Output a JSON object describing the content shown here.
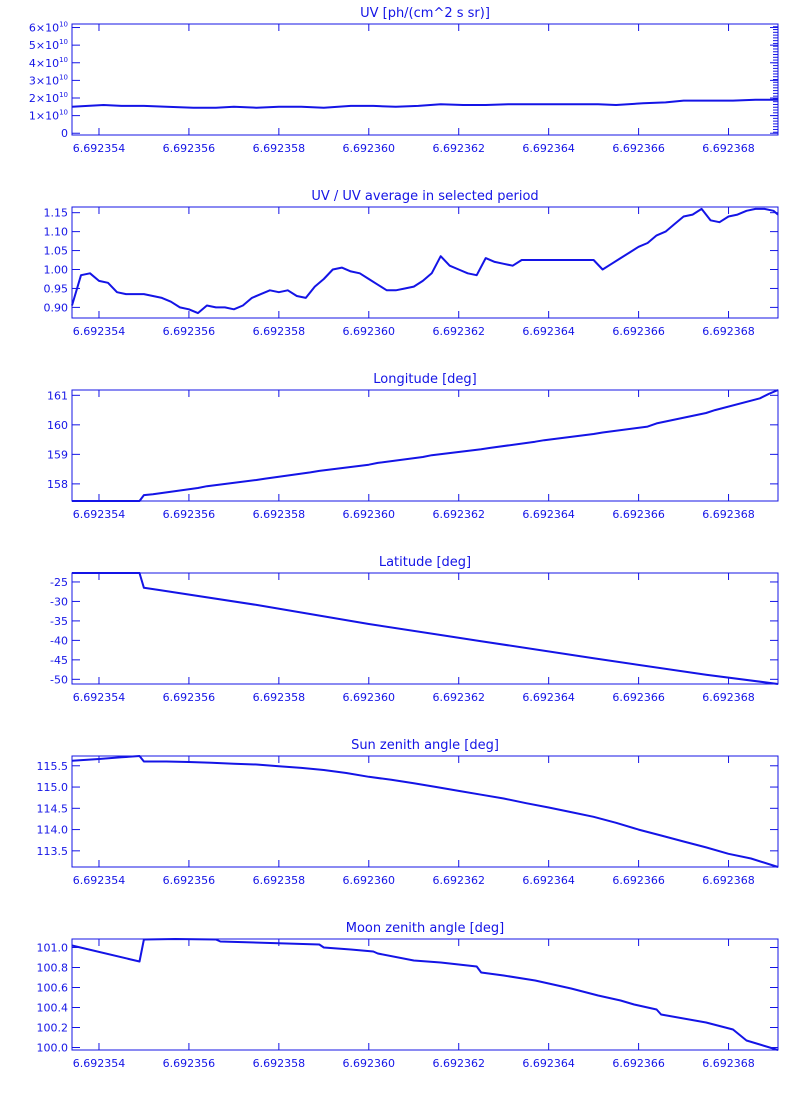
{
  "colors": {
    "plot": "#1414e6",
    "background": "#ffffff"
  },
  "chart_data": [
    {
      "type": "line",
      "title": "UV [ph/(cm^2 s sr)]",
      "xlim": [
        6.6923534,
        6.6923691
      ],
      "ylim": [
        -1000000000.0,
        62000000000.0
      ],
      "x_ticks": [
        6.692354,
        6.692356,
        6.692358,
        6.69236,
        6.692362,
        6.692364,
        6.692366,
        6.692368
      ],
      "x_tick_labels": [
        "6.692354",
        "6.692356",
        "6.692358",
        "6.692360",
        "6.692362",
        "6.692364",
        "6.692366",
        "6.692368"
      ],
      "y_ticks": [
        0,
        10000000000.0,
        20000000000.0,
        30000000000.0,
        40000000000.0,
        50000000000.0,
        60000000000.0
      ],
      "y_tick_labels": [
        {
          "base": "0",
          "exp": ""
        },
        {
          "base": "1×10",
          "exp": "10"
        },
        {
          "base": "2×10",
          "exp": "10"
        },
        {
          "base": "3×10",
          "exp": "10"
        },
        {
          "base": "4×10",
          "exp": "10"
        },
        {
          "base": "5×10",
          "exp": "10"
        },
        {
          "base": "6×10",
          "exp": "10"
        }
      ],
      "minor_right_ticks": true,
      "x": [
        6.6923534,
        6.6923541,
        6.6923545,
        6.692355,
        6.6923555,
        6.6923561,
        6.6923566,
        6.692357,
        6.6923575,
        6.692358,
        6.6923585,
        6.692359,
        6.6923596,
        6.6923601,
        6.6923606,
        6.6923611,
        6.6923616,
        6.6923621,
        6.6923626,
        6.6923631,
        6.6923637,
        6.6923642,
        6.6923647,
        6.6923651,
        6.6923655,
        6.6923661,
        6.6923666,
        6.692367,
        6.6923676,
        6.6923681,
        6.6923686,
        6.6923691
      ],
      "y": [
        15000000000.0,
        16000000000.0,
        15500000000.0,
        15500000000.0,
        15000000000.0,
        14500000000.0,
        14500000000.0,
        15000000000.0,
        14500000000.0,
        15000000000.0,
        15000000000.0,
        14500000000.0,
        15500000000.0,
        15500000000.0,
        15000000000.0,
        15500000000.0,
        16500000000.0,
        16000000000.0,
        16000000000.0,
        16500000000.0,
        16500000000.0,
        16500000000.0,
        16500000000.0,
        16500000000.0,
        16000000000.0,
        17000000000.0,
        17500000000.0,
        18500000000.0,
        18500000000.0,
        18500000000.0,
        19000000000.0,
        19000000000.0
      ]
    },
    {
      "type": "line",
      "title": "UV / UV average in selected period",
      "xlim": [
        6.6923534,
        6.6923691
      ],
      "ylim": [
        0.872,
        1.165
      ],
      "x_ticks": [
        6.692354,
        6.692356,
        6.692358,
        6.69236,
        6.692362,
        6.692364,
        6.692366,
        6.692368
      ],
      "x_tick_labels": [
        "6.692354",
        "6.692356",
        "6.692358",
        "6.692360",
        "6.692362",
        "6.692364",
        "6.692366",
        "6.692368"
      ],
      "y_ticks": [
        0.9,
        0.95,
        1.0,
        1.05,
        1.1,
        1.15
      ],
      "y_tick_labels": [
        "0.90",
        "0.95",
        "1.00",
        "1.05",
        "1.10",
        "1.15"
      ],
      "x": [
        6.6923534,
        6.6923536,
        6.6923538,
        6.692354,
        6.6923542,
        6.6923544,
        6.6923546,
        6.6923548,
        6.692355,
        6.6923552,
        6.6923554,
        6.6923556,
        6.6923558,
        6.692356,
        6.6923562,
        6.6923564,
        6.6923566,
        6.6923568,
        6.692357,
        6.6923572,
        6.6923574,
        6.6923576,
        6.6923578,
        6.692358,
        6.6923582,
        6.6923584,
        6.6923586,
        6.6923588,
        6.692359,
        6.6923592,
        6.6923594,
        6.6923596,
        6.6923598,
        6.69236,
        6.6923602,
        6.6923604,
        6.6923606,
        6.6923608,
        6.692361,
        6.6923612,
        6.6923614,
        6.6923616,
        6.6923618,
        6.692362,
        6.6923622,
        6.6923624,
        6.6923626,
        6.6923628,
        6.692363,
        6.6923632,
        6.6923634,
        6.6923636,
        6.6923638,
        6.692364,
        6.6923642,
        6.6923644,
        6.6923646,
        6.6923648,
        6.692365,
        6.6923652,
        6.6923654,
        6.6923656,
        6.6923658,
        6.692366,
        6.6923662,
        6.6923664,
        6.6923666,
        6.6923668,
        6.692367,
        6.6923672,
        6.6923674,
        6.6923676,
        6.6923678,
        6.692368,
        6.6923682,
        6.6923684,
        6.6923686,
        6.6923688,
        6.692369,
        6.6923691
      ],
      "y": [
        0.905,
        0.985,
        0.99,
        0.97,
        0.965,
        0.94,
        0.935,
        0.935,
        0.935,
        0.93,
        0.925,
        0.915,
        0.9,
        0.895,
        0.885,
        0.905,
        0.9,
        0.9,
        0.895,
        0.905,
        0.925,
        0.935,
        0.945,
        0.94,
        0.945,
        0.93,
        0.925,
        0.955,
        0.975,
        1.0,
        1.005,
        0.995,
        0.99,
        0.975,
        0.96,
        0.945,
        0.945,
        0.95,
        0.955,
        0.97,
        0.99,
        1.035,
        1.01,
        1.0,
        0.99,
        0.985,
        1.03,
        1.02,
        1.015,
        1.01,
        1.025,
        1.025,
        1.025,
        1.025,
        1.025,
        1.025,
        1.025,
        1.025,
        1.025,
        1.0,
        1.015,
        1.03,
        1.045,
        1.06,
        1.07,
        1.09,
        1.1,
        1.12,
        1.14,
        1.145,
        1.16,
        1.13,
        1.125,
        1.14,
        1.145,
        1.155,
        1.16,
        1.16,
        1.155,
        1.145
      ]
    },
    {
      "type": "line",
      "title": "Longitude [deg]",
      "xlim": [
        6.6923534,
        6.6923691
      ],
      "ylim": [
        157.42,
        161.18
      ],
      "x_ticks": [
        6.692354,
        6.692356,
        6.692358,
        6.69236,
        6.692362,
        6.692364,
        6.692366,
        6.692368
      ],
      "x_tick_labels": [
        "6.692354",
        "6.692356",
        "6.692358",
        "6.692360",
        "6.692362",
        "6.692364",
        "6.692366",
        "6.692368"
      ],
      "y_ticks": [
        158,
        159,
        160,
        161
      ],
      "y_tick_labels": [
        "158",
        "159",
        "160",
        "161"
      ],
      "x": [
        6.6923534,
        6.6923549,
        6.692355,
        6.6923552,
        6.6923562,
        6.6923564,
        6.6923575,
        6.6923577,
        6.6923587,
        6.6923589,
        6.69236,
        6.6923602,
        6.6923612,
        6.6923614,
        6.6923625,
        6.6923627,
        6.6923637,
        6.6923639,
        6.692365,
        6.6923652,
        6.6923662,
        6.6923664,
        6.6923675,
        6.6923677,
        6.6923687,
        6.6923689,
        6.6923691
      ],
      "y": [
        157.42,
        157.42,
        157.62,
        157.65,
        157.86,
        157.92,
        158.13,
        158.18,
        158.39,
        158.44,
        158.65,
        158.71,
        158.91,
        158.97,
        159.17,
        159.22,
        159.43,
        159.48,
        159.69,
        159.74,
        159.94,
        160.05,
        160.4,
        160.5,
        160.9,
        161.05,
        161.18
      ]
    },
    {
      "type": "line",
      "title": "Latitude [deg]",
      "xlim": [
        6.6923534,
        6.6923691
      ],
      "ylim": [
        -51.2,
        -22.7
      ],
      "x_ticks": [
        6.692354,
        6.692356,
        6.692358,
        6.69236,
        6.692362,
        6.692364,
        6.692366,
        6.692368
      ],
      "x_tick_labels": [
        "6.692354",
        "6.692356",
        "6.692358",
        "6.692360",
        "6.692362",
        "6.692364",
        "6.692366",
        "6.692368"
      ],
      "y_ticks": [
        -50,
        -45,
        -40,
        -35,
        -30,
        -25
      ],
      "y_tick_labels": [
        "-50",
        "-45",
        "-40",
        "-35",
        "-30",
        "-25"
      ],
      "x": [
        6.6923534,
        6.6923549,
        6.692355,
        6.6923553,
        6.6923575,
        6.69236,
        6.6923625,
        6.692365,
        6.6923675,
        6.6923691
      ],
      "y": [
        -22.7,
        -22.7,
        -26.5,
        -27,
        -30.9,
        -35.8,
        -40.2,
        -44.6,
        -48.8,
        -51.2
      ]
    },
    {
      "type": "line",
      "title": "Sun zenith angle [deg]",
      "xlim": [
        6.6923534,
        6.6923691
      ],
      "ylim": [
        113.12,
        115.73
      ],
      "x_ticks": [
        6.692354,
        6.692356,
        6.692358,
        6.69236,
        6.692362,
        6.692364,
        6.692366,
        6.692368
      ],
      "x_tick_labels": [
        "6.692354",
        "6.692356",
        "6.692358",
        "6.692360",
        "6.692362",
        "6.692364",
        "6.692366",
        "6.692368"
      ],
      "y_ticks": [
        113.5,
        114.0,
        114.5,
        115.0,
        115.5
      ],
      "y_tick_labels": [
        "113.5",
        "114.0",
        "114.5",
        "115.0",
        "115.5"
      ],
      "x": [
        6.6923534,
        6.692354,
        6.6923545,
        6.6923549,
        6.692355,
        6.6923555,
        6.692356,
        6.6923565,
        6.692357,
        6.6923575,
        6.692358,
        6.6923585,
        6.692359,
        6.6923595,
        6.69236,
        6.6923605,
        6.692361,
        6.6923615,
        6.692362,
        6.6923625,
        6.692363,
        6.6923635,
        6.692364,
        6.6923645,
        6.692365,
        6.6923655,
        6.692366,
        6.6923665,
        6.692367,
        6.6923675,
        6.692368,
        6.6923685,
        6.6923691
      ],
      "y": [
        115.62,
        115.66,
        115.7,
        115.73,
        115.6,
        115.6,
        115.59,
        115.57,
        115.55,
        115.53,
        115.49,
        115.45,
        115.4,
        115.33,
        115.24,
        115.17,
        115.09,
        115.0,
        114.91,
        114.82,
        114.73,
        114.62,
        114.52,
        114.41,
        114.3,
        114.16,
        114.0,
        113.86,
        113.72,
        113.58,
        113.43,
        113.32,
        113.12
      ]
    },
    {
      "type": "line",
      "title": "Moon zenith angle [deg]",
      "xlim": [
        6.6923534,
        6.6923691
      ],
      "ylim": [
        99.975,
        101.085
      ],
      "x_ticks": [
        6.692354,
        6.692356,
        6.692358,
        6.69236,
        6.692362,
        6.692364,
        6.692366,
        6.692368
      ],
      "x_tick_labels": [
        "6.692354",
        "6.692356",
        "6.692358",
        "6.692360",
        "6.692362",
        "6.692364",
        "6.692366",
        "6.692368"
      ],
      "y_ticks": [
        100.0,
        100.2,
        100.4,
        100.6,
        100.8,
        101.0
      ],
      "y_tick_labels": [
        "100.0",
        "100.2",
        "100.4",
        "100.6",
        "100.8",
        "101.0"
      ],
      "x": [
        6.6923534,
        6.6923549,
        6.692355,
        6.6923557,
        6.6923566,
        6.6923567,
        6.6923589,
        6.692359,
        6.6923596,
        6.6923601,
        6.6923602,
        6.692361,
        6.6923616,
        6.6923624,
        6.6923625,
        6.692363,
        6.6923637,
        6.6923645,
        6.6923651,
        6.6923656,
        6.6923659,
        6.6923664,
        6.6923665,
        6.6923675,
        6.6923681,
        6.6923684,
        6.6923691
      ],
      "y": [
        101.02,
        100.86,
        101.08,
        101.085,
        101.08,
        101.06,
        101.03,
        101.0,
        100.98,
        100.96,
        100.94,
        100.87,
        100.85,
        100.81,
        100.75,
        100.72,
        100.67,
        100.59,
        100.52,
        100.47,
        100.43,
        100.38,
        100.33,
        100.25,
        100.18,
        100.07,
        99.975
      ]
    }
  ]
}
